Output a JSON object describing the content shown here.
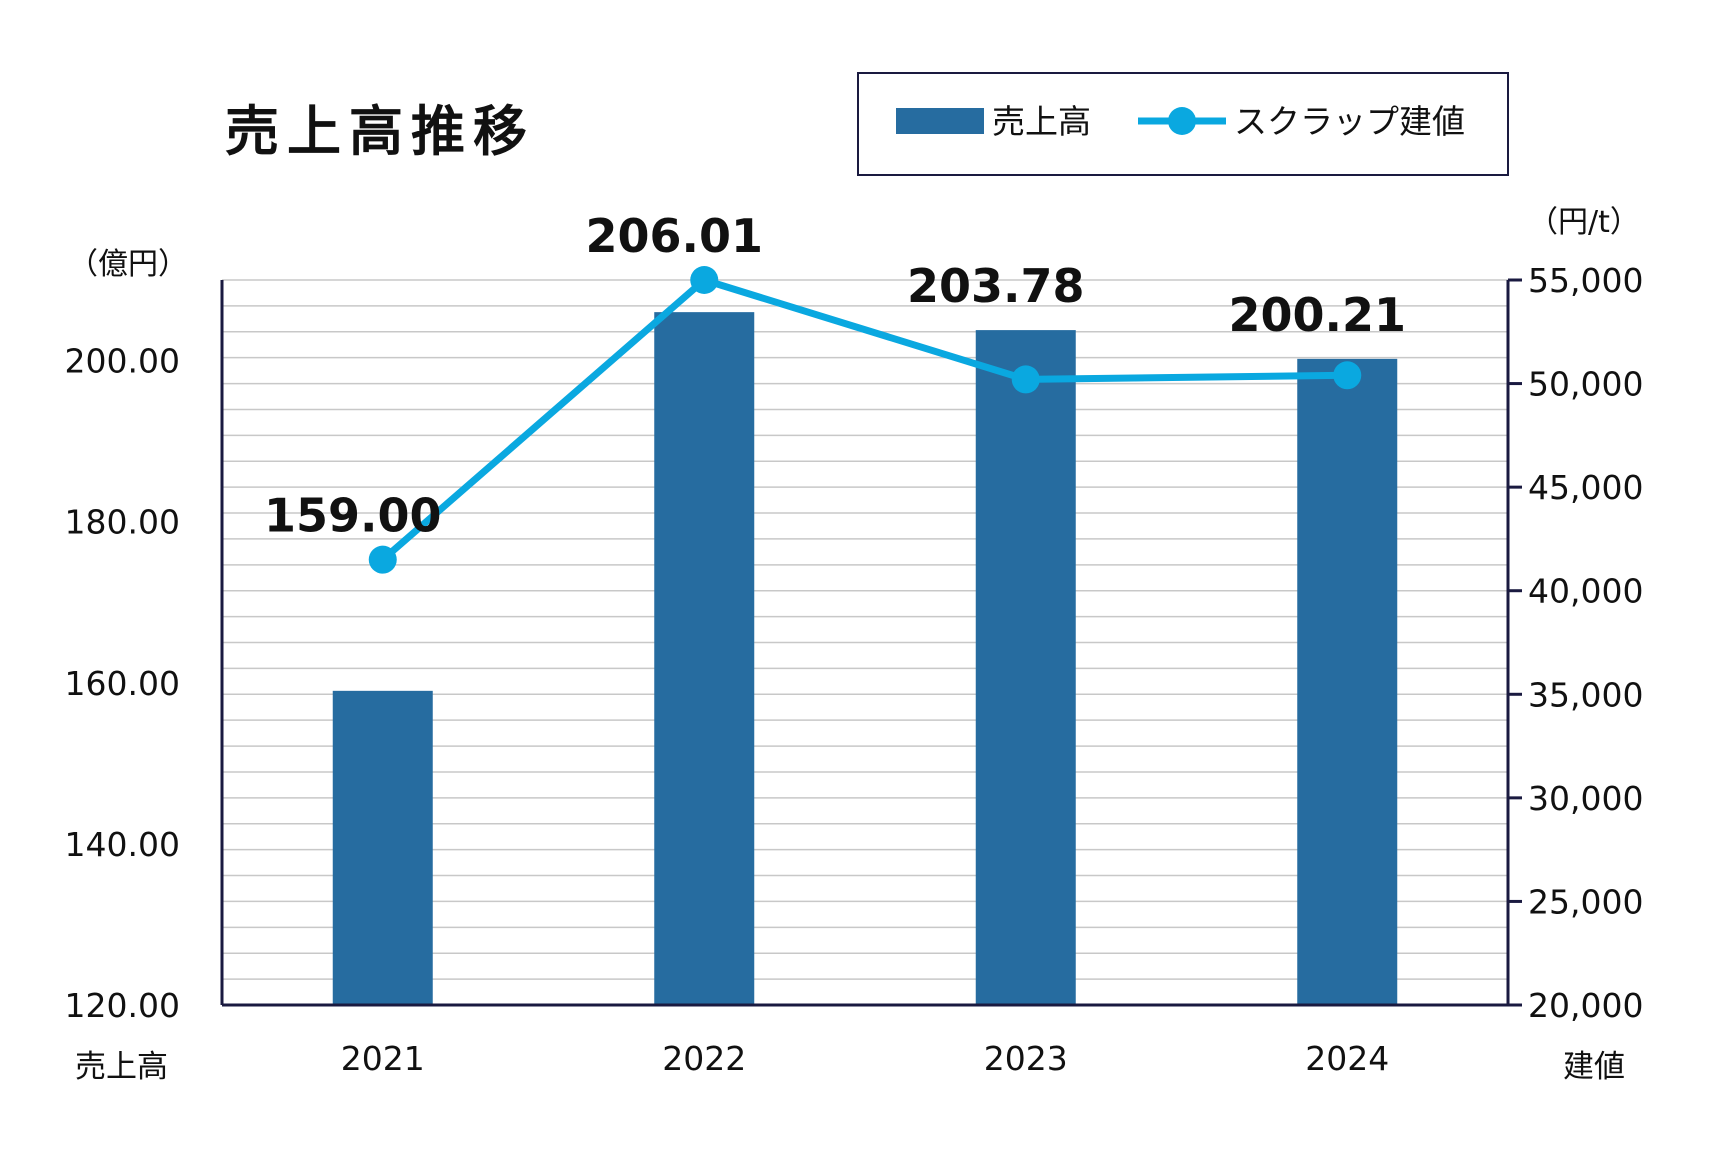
{
  "chart_data": {
    "type": "bar",
    "title": "売上高推移",
    "categories": [
      "2021",
      "2022",
      "2023",
      "2024"
    ],
    "series": [
      {
        "name": "売上高",
        "type": "bar",
        "axis": "left",
        "values": [
          159.0,
          206.01,
          203.78,
          200.21
        ],
        "data_labels": [
          "159.00",
          "206.01",
          "203.78",
          "200.21"
        ]
      },
      {
        "name": "スクラップ建値",
        "type": "line",
        "axis": "right",
        "values": [
          41500,
          55000,
          50200,
          50400
        ]
      }
    ],
    "y_left": {
      "label": "売上高",
      "unit": "（億円）",
      "range": [
        120,
        210
      ],
      "ticks": [
        "120.00",
        "140.00",
        "160.00",
        "180.00",
        "200.00"
      ],
      "tick_values": [
        120,
        140,
        160,
        180,
        200
      ]
    },
    "y_right": {
      "label": "建値",
      "unit": "（円/t）",
      "range": [
        20000,
        55000
      ],
      "ticks": [
        "20,000",
        "25,000",
        "30,000",
        "35,000",
        "40,000",
        "45,000",
        "50,000",
        "55,000"
      ],
      "tick_values": [
        20000,
        25000,
        30000,
        35000,
        40000,
        45000,
        50000,
        55000
      ]
    },
    "grid": true,
    "legend_position": "top-right",
    "colors": {
      "bar": "#266ca0",
      "line": "#0aa8e0",
      "axis": "#1a1a40",
      "grid": "#c8c8c8"
    }
  }
}
